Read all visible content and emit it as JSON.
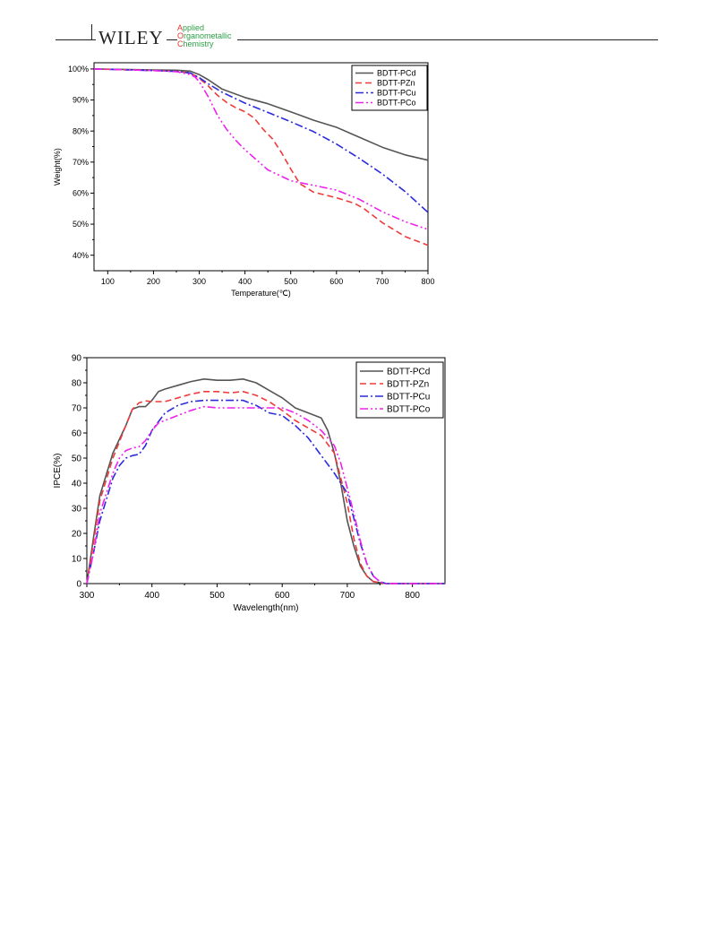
{
  "header": {
    "publisher": "WILEY",
    "journal_lines": [
      {
        "initial": "A",
        "rest": "pplied"
      },
      {
        "initial": "O",
        "rest": "rganometallic"
      },
      {
        "initial": "C",
        "rest": "hemistry"
      }
    ]
  },
  "colors": {
    "BDTT-PCd": "#555555",
    "BDTT-PZn": "#ee3b3b",
    "BDTT-PCu": "#2b2bdb",
    "BDTT-PCo": "#ee22ee"
  },
  "chart_data": [
    {
      "type": "line",
      "xlabel": "Temperature(℃)",
      "ylabel": "Weight(%)",
      "xlim": [
        70,
        800
      ],
      "ylim": [
        35,
        102
      ],
      "xticks": [
        100,
        200,
        300,
        400,
        500,
        600,
        700,
        800
      ],
      "xtick_labels": [
        "100",
        "200",
        "300",
        "400",
        "500",
        "600",
        "700",
        "800"
      ],
      "yticks": [
        40,
        50,
        60,
        70,
        80,
        90,
        100
      ],
      "ytick_labels": [
        "40%",
        "50%",
        "60%",
        "70%",
        "80%",
        "90%",
        "100%"
      ],
      "legend_position": "top-right",
      "series": [
        {
          "name": "BDTT-PCd",
          "style": "solid",
          "x": [
            70,
            150,
            200,
            250,
            280,
            300,
            320,
            350,
            400,
            450,
            500,
            550,
            600,
            650,
            700,
            750,
            800
          ],
          "y": [
            100,
            99.8,
            99.7,
            99.6,
            99.3,
            98.2,
            96.5,
            93.5,
            90.8,
            88.8,
            86.2,
            83.5,
            81.2,
            78,
            74.8,
            72.3,
            70.6
          ]
        },
        {
          "name": "BDTT-PZn",
          "style": "dashed",
          "x": [
            70,
            150,
            200,
            250,
            280,
            300,
            320,
            340,
            360,
            380,
            400,
            420,
            440,
            460,
            480,
            500,
            520,
            550,
            600,
            640,
            660,
            700,
            750,
            800
          ],
          "y": [
            100,
            99.7,
            99.5,
            99.2,
            98.8,
            97,
            94.5,
            91.5,
            89.2,
            87.5,
            86.2,
            84.2,
            80.5,
            77.5,
            73,
            67.8,
            63,
            60.3,
            58.5,
            56.7,
            55,
            50.5,
            46,
            43.2
          ]
        },
        {
          "name": "BDTT-PCu",
          "style": "dashdot",
          "x": [
            70,
            150,
            200,
            250,
            280,
            300,
            320,
            350,
            400,
            450,
            500,
            550,
            600,
            650,
            700,
            750,
            800
          ],
          "y": [
            100,
            99.7,
            99.5,
            99.2,
            98.7,
            97.2,
            95.2,
            92.5,
            89,
            86,
            83,
            79.8,
            75.8,
            71.2,
            66.2,
            60.5,
            53.8
          ]
        },
        {
          "name": "BDTT-PCo",
          "style": "dashdotdot",
          "x": [
            70,
            150,
            200,
            250,
            280,
            290,
            300,
            320,
            340,
            360,
            380,
            400,
            450,
            500,
            550,
            600,
            650,
            700,
            750,
            800
          ],
          "y": [
            100,
            99.7,
            99.5,
            99.1,
            98.2,
            97.5,
            96,
            91,
            85,
            80.5,
            77,
            74,
            67.5,
            64,
            62.5,
            61,
            58,
            54,
            50.8,
            48.3
          ]
        }
      ]
    },
    {
      "type": "line",
      "xlabel": "Wavelength(nm)",
      "ylabel": "IPCE(%)",
      "xlim": [
        300,
        850
      ],
      "ylim": [
        0,
        90
      ],
      "xticks": [
        300,
        400,
        500,
        600,
        700,
        800
      ],
      "xtick_labels": [
        "300",
        "400",
        "500",
        "600",
        "700",
        "800"
      ],
      "yticks": [
        0,
        10,
        20,
        30,
        40,
        50,
        60,
        70,
        80,
        90
      ],
      "ytick_labels": [
        "0",
        "10",
        "20",
        "30",
        "40",
        "50",
        "60",
        "70",
        "80",
        "90"
      ],
      "legend_position": "top-right",
      "series": [
        {
          "name": "BDTT-PCd",
          "style": "solid",
          "x": [
            300,
            310,
            320,
            340,
            360,
            370,
            380,
            390,
            400,
            410,
            420,
            440,
            460,
            480,
            500,
            520,
            540,
            560,
            580,
            600,
            620,
            640,
            660,
            670,
            680,
            690,
            700,
            710,
            720,
            730,
            740,
            760,
            780,
            800,
            850
          ],
          "y": [
            0,
            18,
            35,
            52,
            63,
            69.5,
            70.5,
            70.5,
            73,
            76.5,
            77.5,
            79,
            80.5,
            81.5,
            81,
            81,
            81.5,
            80,
            77,
            74,
            70,
            68,
            66,
            61,
            52,
            40,
            25,
            15,
            7,
            3,
            0.8,
            0,
            0,
            0,
            0
          ]
        },
        {
          "name": "BDTT-PZn",
          "style": "dashed",
          "x": [
            300,
            310,
            320,
            340,
            360,
            370,
            380,
            390,
            400,
            420,
            440,
            460,
            480,
            500,
            520,
            540,
            560,
            580,
            600,
            620,
            640,
            660,
            680,
            700,
            710,
            720,
            730,
            740,
            760,
            800,
            850
          ],
          "y": [
            0,
            16,
            33,
            50,
            63,
            69.5,
            72,
            72.8,
            72.5,
            72.5,
            74,
            75.5,
            76.5,
            76.5,
            76,
            76.5,
            75,
            72.5,
            69,
            65,
            62,
            59,
            52,
            32,
            18,
            8,
            3,
            0.8,
            0,
            0,
            0
          ]
        },
        {
          "name": "BDTT-PCu",
          "style": "dashdot",
          "x": [
            300,
            310,
            320,
            340,
            350,
            360,
            370,
            380,
            390,
            400,
            420,
            440,
            460,
            480,
            500,
            520,
            540,
            560,
            580,
            600,
            620,
            640,
            660,
            680,
            700,
            710,
            720,
            730,
            740,
            750,
            760,
            800,
            850
          ],
          "y": [
            0,
            12,
            25,
            42,
            47,
            50,
            51,
            51.5,
            55,
            61,
            68,
            71,
            72.5,
            73,
            73,
            73,
            73,
            71,
            68,
            67,
            63,
            58,
            51,
            44,
            36,
            26,
            16,
            8,
            3,
            0.8,
            0,
            0,
            0
          ]
        },
        {
          "name": "BDTT-PCo",
          "style": "dashdotdot",
          "x": [
            300,
            310,
            320,
            340,
            350,
            360,
            370,
            380,
            390,
            400,
            410,
            420,
            440,
            460,
            480,
            500,
            520,
            540,
            560,
            580,
            600,
            620,
            640,
            660,
            680,
            690,
            700,
            710,
            720,
            730,
            740,
            750,
            760,
            800,
            850
          ],
          "y": [
            0,
            12,
            28,
            44,
            50,
            53,
            54,
            54.5,
            57,
            61,
            64,
            65,
            67,
            69,
            70.5,
            70,
            70,
            70,
            70,
            70,
            70,
            68,
            65,
            61,
            55,
            48,
            38,
            28,
            17,
            8,
            3,
            0.8,
            0,
            0,
            0
          ]
        }
      ]
    }
  ]
}
